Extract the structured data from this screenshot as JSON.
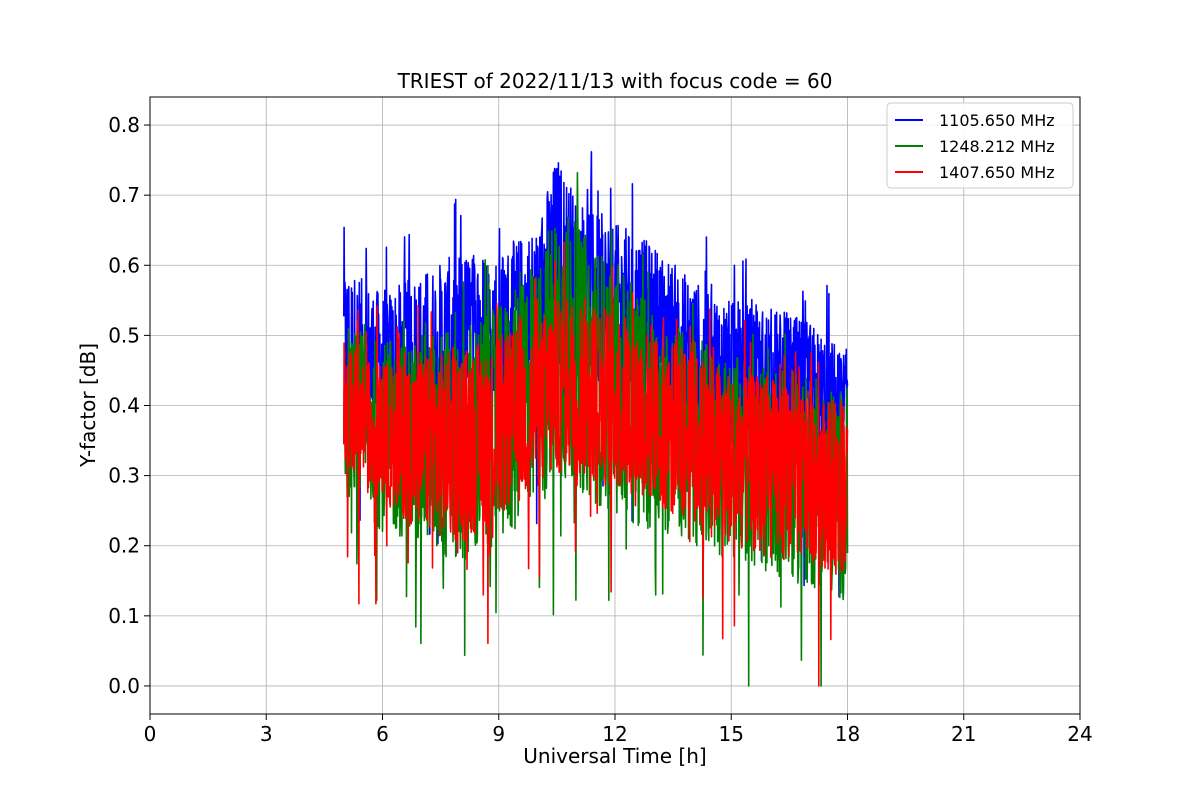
{
  "chart_data": {
    "type": "line",
    "title": "TRIEST of 2022/11/13 with focus code = 60",
    "xlabel": "Universal Time [h]",
    "ylabel": "Y-factor [dB]",
    "xlim": [
      0,
      24
    ],
    "ylim": [
      -0.04,
      0.84
    ],
    "xticks": [
      0,
      3,
      6,
      9,
      12,
      15,
      18,
      21,
      24
    ],
    "yticks": [
      0.0,
      0.1,
      0.2,
      0.3,
      0.4,
      0.5,
      0.6,
      0.7,
      0.8
    ],
    "grid": true,
    "legend_position": "top-right",
    "series": [
      {
        "name": "1105.650 MHz",
        "color": "#0000ff",
        "x": [
          5.0,
          6.0,
          7.0,
          8.0,
          9.0,
          10.0,
          10.5,
          11.0,
          12.0,
          13.0,
          14.0,
          15.0,
          16.0,
          17.0,
          18.0
        ],
        "upper": [
          0.6,
          0.56,
          0.59,
          0.62,
          0.62,
          0.66,
          0.76,
          0.7,
          0.66,
          0.63,
          0.58,
          0.55,
          0.54,
          0.52,
          0.48
        ],
        "lower": [
          0.36,
          0.34,
          0.35,
          0.36,
          0.37,
          0.4,
          0.44,
          0.43,
          0.41,
          0.39,
          0.37,
          0.33,
          0.32,
          0.3,
          0.3
        ]
      },
      {
        "name": "1248.212 MHz",
        "color": "#008000",
        "x": [
          5.0,
          6.0,
          7.0,
          8.0,
          9.0,
          10.0,
          10.5,
          11.0,
          12.0,
          13.0,
          14.0,
          15.0,
          16.0,
          17.0,
          18.0
        ],
        "upper": [
          0.52,
          0.49,
          0.5,
          0.52,
          0.54,
          0.6,
          0.7,
          0.66,
          0.6,
          0.54,
          0.5,
          0.47,
          0.46,
          0.44,
          0.42
        ],
        "lower": [
          0.27,
          0.22,
          0.2,
          0.16,
          0.2,
          0.24,
          0.28,
          0.28,
          0.24,
          0.22,
          0.2,
          0.18,
          0.16,
          0.14,
          0.12
        ]
      },
      {
        "name": "1407.650 MHz",
        "color": "#ff0000",
        "x": [
          5.0,
          6.0,
          7.0,
          8.0,
          9.0,
          10.0,
          10.5,
          11.0,
          12.0,
          13.0,
          14.0,
          15.0,
          16.0,
          17.0,
          18.0
        ],
        "upper": [
          0.48,
          0.46,
          0.47,
          0.48,
          0.5,
          0.52,
          0.55,
          0.56,
          0.54,
          0.5,
          0.48,
          0.45,
          0.44,
          0.42,
          0.4
        ],
        "lower": [
          0.3,
          0.26,
          0.22,
          0.2,
          0.24,
          0.28,
          0.3,
          0.3,
          0.28,
          0.26,
          0.22,
          0.2,
          0.18,
          0.18,
          0.15
        ]
      }
    ]
  }
}
